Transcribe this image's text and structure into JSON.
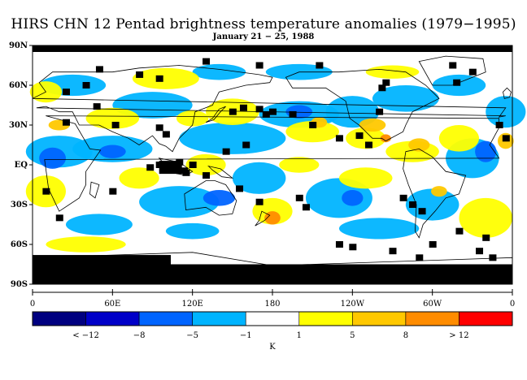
{
  "title": "HIRS CHN 12 Pentad brightness temperature anomalies (1979−1995)",
  "subtitle": "January 21 − 25, 1988",
  "lat_labels": [
    "90N",
    "60N",
    "30N",
    "EQ",
    "30S",
    "60S",
    "90S"
  ],
  "lon_labels": [
    "0",
    "60E",
    "120E",
    "180",
    "120W",
    "60W",
    "0"
  ],
  "colorbar": {
    "colors": [
      "#000080",
      "#0000c8",
      "#0064ff",
      "#00b4ff",
      "#ffffff",
      "#ffff00",
      "#ffc800",
      "#ff8c00",
      "#ff0000"
    ],
    "tick_labels": [
      "< −12",
      "−8",
      "−5",
      "−1",
      "1",
      "5",
      "8",
      "> 12"
    ],
    "unit": "K"
  },
  "legend_colors": {
    "no_data": "#000000",
    "land_outline": "#000000"
  }
}
